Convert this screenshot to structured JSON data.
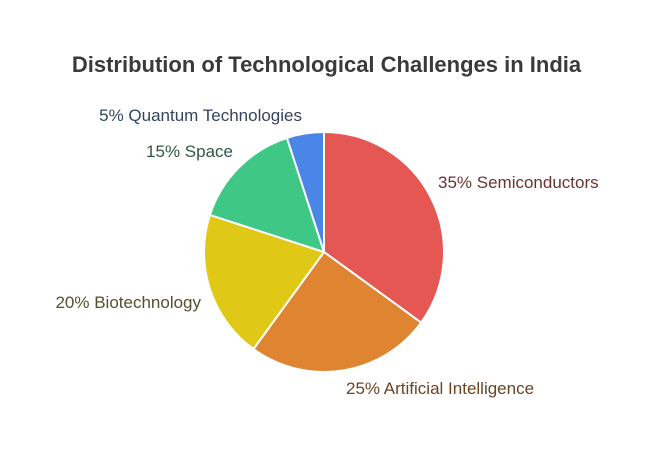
{
  "chart_data": {
    "type": "pie",
    "title": "Distribution of Technological Challenges in India",
    "slices": [
      {
        "label": "Semiconductors",
        "value": 35,
        "display": "35% Semiconductors",
        "color": "#e55753",
        "text_color": "#6b3330"
      },
      {
        "label": "Artificial Intelligence",
        "value": 25,
        "display": "25% Artificial Intelligence",
        "color": "#df8532",
        "text_color": "#6b4422"
      },
      {
        "label": "Biotechnology",
        "value": 20,
        "display": "20% Biotechnology",
        "color": "#e0c916",
        "text_color": "#55512a"
      },
      {
        "label": "Space",
        "value": 15,
        "display": "15% Space",
        "color": "#3ec785",
        "text_color": "#2f5844"
      },
      {
        "label": "Quantum Technologies",
        "value": 5,
        "display": "5% Quantum Technologies",
        "color": "#4a86e8",
        "text_color": "#34445e"
      }
    ]
  }
}
